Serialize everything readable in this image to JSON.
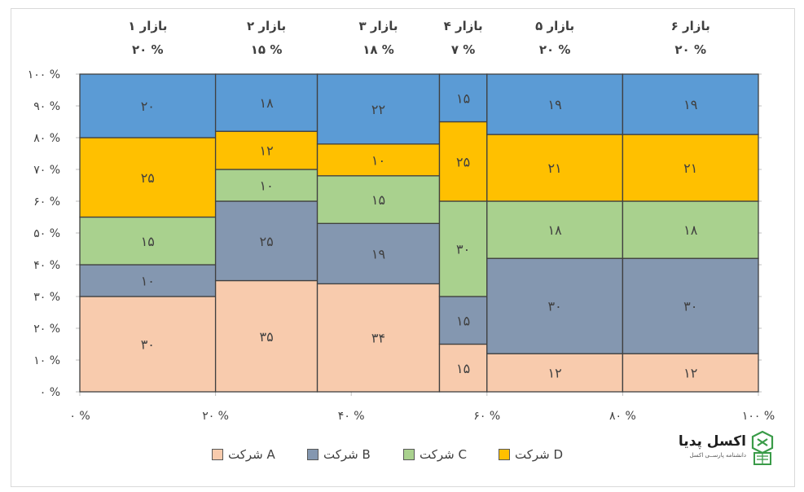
{
  "chart_data": {
    "type": "bar",
    "subtype": "marimekko-stacked-100",
    "markets": [
      {
        "name": "بازار ۱",
        "share_label": "۲۰ %",
        "share": 20
      },
      {
        "name": "بازار ۲",
        "share_label": "۱۵ %",
        "share": 15
      },
      {
        "name": "بازار ۳",
        "share_label": "۱۸ %",
        "share": 18
      },
      {
        "name": "بازار ۴",
        "share_label": "۷ %",
        "share": 7
      },
      {
        "name": "بازار ۵",
        "share_label": "۲۰ %",
        "share": 20
      },
      {
        "name": "بازار ۶",
        "share_label": "۲۰ %",
        "share": 20
      }
    ],
    "series": [
      {
        "name": "شرکت A",
        "color": "#F8CBAD",
        "values": [
          30,
          35,
          34,
          15,
          12,
          12
        ],
        "labels": [
          "۳۰",
          "۳۵",
          "۳۴",
          "۱۵",
          "۱۲",
          "۱۲"
        ]
      },
      {
        "name": "شرکت B",
        "color": "#8497B0",
        "values": [
          10,
          25,
          19,
          15,
          30,
          30
        ],
        "labels": [
          "۱۰",
          "۲۵",
          "۱۹",
          "۱۵",
          "۳۰",
          "۳۰"
        ]
      },
      {
        "name": "شرکت C",
        "color": "#A9D18E",
        "values": [
          15,
          10,
          15,
          30,
          18,
          18
        ],
        "labels": [
          "۱۵",
          "۱۰",
          "۱۵",
          "۳۰",
          "۱۸",
          "۱۸"
        ]
      },
      {
        "name": "شرکت D",
        "color": "#FFC000",
        "values": [
          25,
          12,
          10,
          25,
          21,
          21
        ],
        "labels": [
          "۲۵",
          "۱۲",
          "۱۰",
          "۲۵",
          "۲۱",
          "۲۱"
        ]
      },
      {
        "name": "",
        "color": "#5B9BD5",
        "values": [
          20,
          18,
          22,
          15,
          19,
          19
        ],
        "labels": [
          "۲۰",
          "۱۸",
          "۲۲",
          "۱۵",
          "۱۹",
          "۱۹"
        ]
      }
    ],
    "y_ticks": [
      "۰ %",
      "۱۰ %",
      "۲۰ %",
      "۳۰ %",
      "۴۰ %",
      "۵۰ %",
      "۶۰ %",
      "۷۰ %",
      "۸۰ %",
      "۹۰ %",
      "۱۰۰ %"
    ],
    "x_ticks": [
      "۰ %",
      "۲۰ %",
      "۴۰ %",
      "۶۰ %",
      "۸۰ %",
      "۱۰۰ %"
    ],
    "ylim": [
      0,
      100
    ],
    "xlim": [
      0,
      100
    ],
    "legend_position": "bottom"
  },
  "legend": [
    {
      "label": "شرکت A",
      "color": "#F8CBAD"
    },
    {
      "label": "شرکت B",
      "color": "#8497B0"
    },
    {
      "label": "شرکت C",
      "color": "#A9D18E"
    },
    {
      "label": "شرکت D",
      "color": "#FFC000"
    }
  ],
  "logo": {
    "name": "اکسل پدیا",
    "tagline": "دانشنامه پارســی اکسل",
    "accent": "#3A9B48"
  }
}
